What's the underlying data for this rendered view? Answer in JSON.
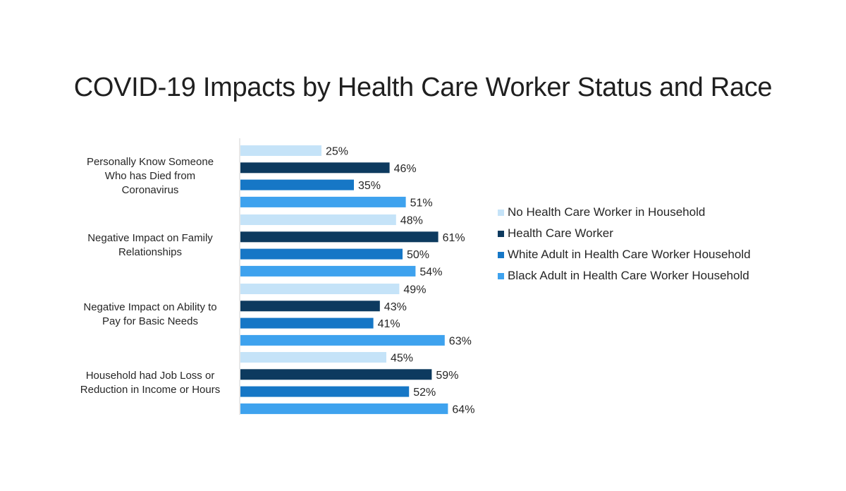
{
  "chart_data": {
    "type": "bar",
    "orientation": "horizontal",
    "title": "COVID-19 Impacts by Health Care Worker Status and Race",
    "categories": [
      [
        "Personally Know Someone",
        "Who has Died from",
        "Coronavirus"
      ],
      [
        "Negative Impact on Family",
        "Relationships"
      ],
      [
        "Negative Impact on Ability to",
        "Pay for Basic Needs"
      ],
      [
        "Household had Job Loss or",
        "Reduction in Income or Hours"
      ]
    ],
    "series": [
      {
        "name": "No Health Care Worker in Household",
        "color": "#c5e3f8",
        "values": [
          25,
          48,
          49,
          45
        ]
      },
      {
        "name": "Health Care Worker",
        "color": "#0d3a5f",
        "values": [
          46,
          61,
          43,
          59
        ]
      },
      {
        "name": "White Adult in Health Care Worker Household",
        "color": "#1677c6",
        "values": [
          35,
          50,
          41,
          52
        ]
      },
      {
        "name": "Black Adult in Health Care Worker Household",
        "color": "#3ea2ee",
        "values": [
          51,
          54,
          63,
          64
        ]
      }
    ],
    "value_suffix": "%",
    "xlim": [
      0,
      100
    ],
    "grid": false,
    "legend_position": "right"
  }
}
